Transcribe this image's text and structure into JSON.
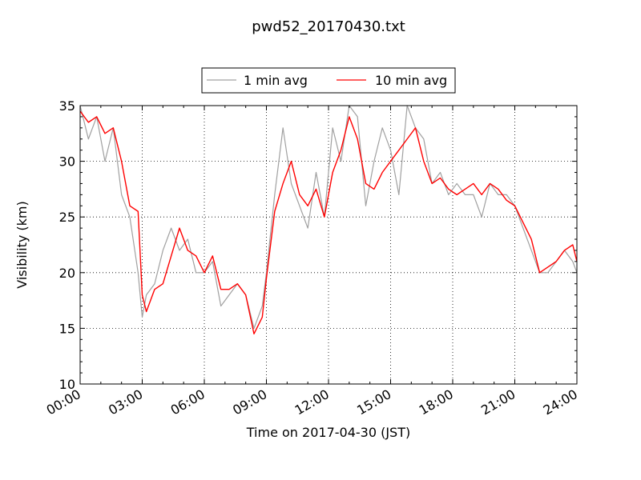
{
  "chart_data": {
    "type": "line",
    "title": "pwd52_20170430.txt",
    "xlabel": "Time on 2017-04-30 (JST)",
    "ylabel": "Visibility (km)",
    "xlim_hours": [
      0,
      24
    ],
    "ylim": [
      10,
      35
    ],
    "x_ticks": [
      {
        "value": 0,
        "label": "00:00"
      },
      {
        "value": 3,
        "label": "03:00"
      },
      {
        "value": 6,
        "label": "06:00"
      },
      {
        "value": 9,
        "label": "09:00"
      },
      {
        "value": 12,
        "label": "12:00"
      },
      {
        "value": 15,
        "label": "15:00"
      },
      {
        "value": 18,
        "label": "18:00"
      },
      {
        "value": 21,
        "label": "21:00"
      },
      {
        "value": 24,
        "label": "24:00"
      }
    ],
    "y_ticks": [
      {
        "value": 10,
        "label": "10"
      },
      {
        "value": 15,
        "label": "15"
      },
      {
        "value": 20,
        "label": "20"
      },
      {
        "value": 25,
        "label": "25"
      },
      {
        "value": 30,
        "label": "30"
      },
      {
        "value": 35,
        "label": "35"
      }
    ],
    "grid": true,
    "legend_position": "top-center",
    "series": [
      {
        "name": "1 min avg",
        "color": "#a0a0a0",
        "x_hours": [
          0.0,
          0.4,
          0.8,
          1.2,
          1.6,
          2.0,
          2.4,
          2.8,
          3.0,
          3.2,
          3.6,
          4.0,
          4.4,
          4.8,
          5.2,
          5.6,
          6.0,
          6.4,
          6.8,
          7.2,
          7.6,
          8.0,
          8.4,
          8.8,
          9.0,
          9.4,
          9.8,
          10.2,
          10.6,
          11.0,
          11.4,
          11.8,
          12.2,
          12.6,
          13.0,
          13.4,
          13.8,
          14.2,
          14.6,
          15.0,
          15.4,
          15.8,
          16.2,
          16.6,
          17.0,
          17.4,
          17.8,
          18.2,
          18.6,
          19.0,
          19.4,
          19.8,
          20.2,
          20.6,
          21.0,
          21.4,
          21.8,
          22.2,
          22.6,
          23.0,
          23.4,
          23.8,
          24.0
        ],
        "y": [
          35,
          32,
          34,
          30,
          33,
          27,
          25,
          20,
          16,
          18,
          19,
          22,
          24,
          22,
          23,
          20,
          20,
          21,
          17,
          18,
          19,
          18,
          15,
          17,
          20,
          27,
          33,
          28,
          26,
          24,
          29,
          25,
          33,
          30,
          35,
          34,
          26,
          30,
          33,
          31,
          27,
          35,
          33,
          32,
          28,
          29,
          27,
          28,
          27,
          27,
          25,
          28,
          27,
          27,
          26,
          24,
          22,
          20,
          20,
          21,
          22,
          21,
          20
        ]
      },
      {
        "name": "10 min avg",
        "color": "#ff0000",
        "x_hours": [
          0.0,
          0.4,
          0.8,
          1.2,
          1.6,
          2.0,
          2.4,
          2.8,
          3.0,
          3.2,
          3.6,
          4.0,
          4.4,
          4.8,
          5.2,
          5.6,
          6.0,
          6.4,
          6.8,
          7.2,
          7.6,
          8.0,
          8.4,
          8.8,
          9.0,
          9.4,
          9.8,
          10.2,
          10.6,
          11.0,
          11.4,
          11.8,
          12.2,
          12.6,
          13.0,
          13.4,
          13.8,
          14.2,
          14.6,
          15.0,
          15.4,
          15.8,
          16.2,
          16.6,
          17.0,
          17.4,
          17.8,
          18.2,
          18.6,
          19.0,
          19.4,
          19.8,
          20.2,
          20.6,
          21.0,
          21.4,
          21.8,
          22.2,
          22.6,
          23.0,
          23.4,
          23.8,
          24.0
        ],
        "y": [
          34.5,
          33.5,
          34,
          32.5,
          33,
          30,
          26,
          25.5,
          18,
          16.5,
          18.5,
          19,
          21.5,
          24,
          22,
          21.5,
          20,
          21.5,
          18.5,
          18.5,
          19,
          18,
          14.5,
          16,
          19.5,
          25.5,
          28,
          30,
          27,
          26,
          27.5,
          25,
          29,
          31,
          34,
          32,
          28,
          27.5,
          29,
          30,
          31,
          32,
          33,
          30,
          28,
          28.5,
          27.5,
          27,
          27.5,
          28,
          27,
          28,
          27.5,
          26.5,
          26,
          24.5,
          23,
          20,
          20.5,
          21,
          22,
          22.5,
          21
        ]
      }
    ]
  }
}
